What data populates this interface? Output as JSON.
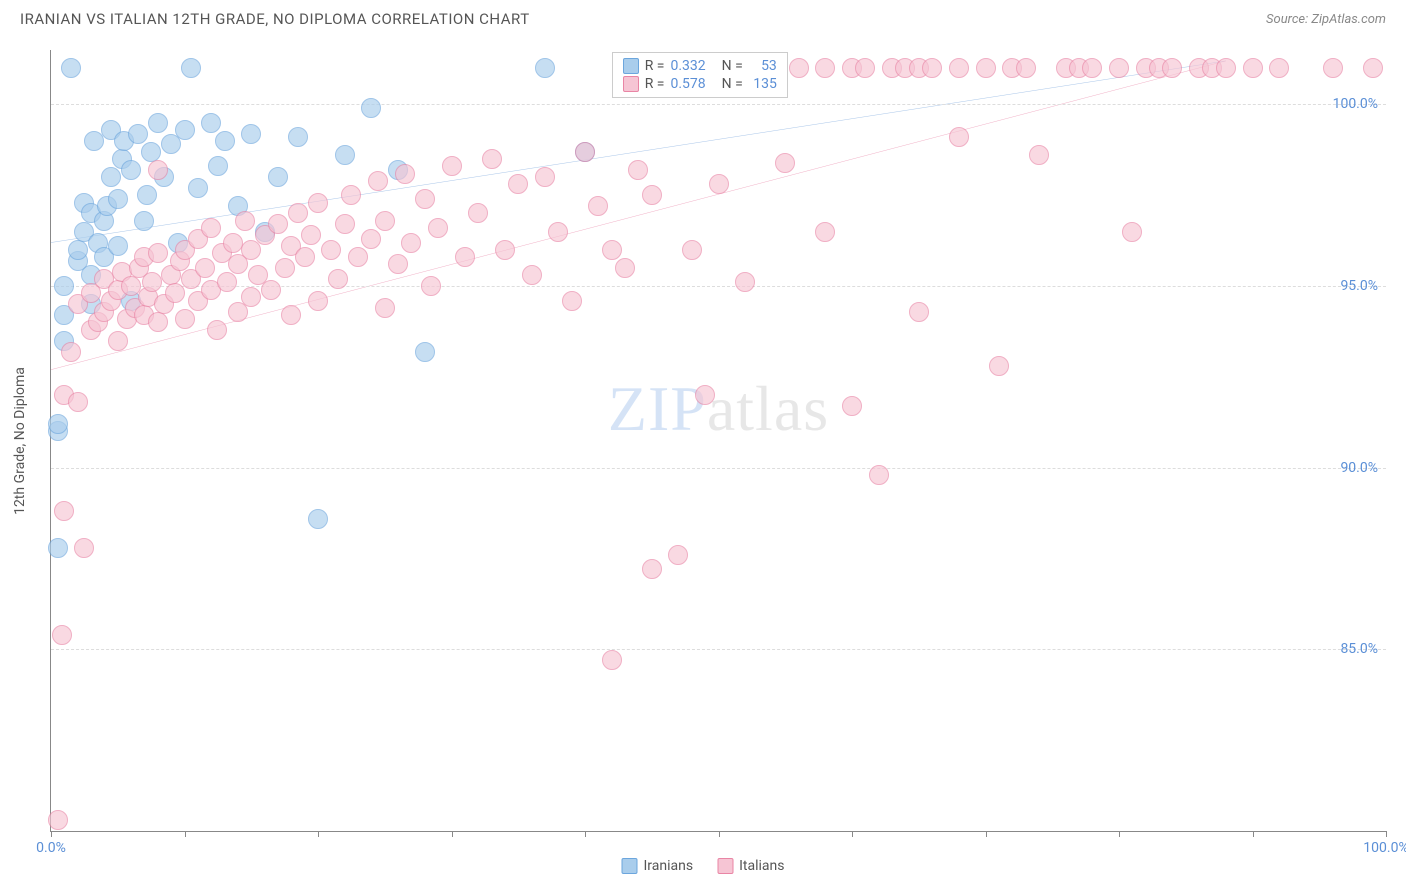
{
  "title": "IRANIAN VS ITALIAN 12TH GRADE, NO DIPLOMA CORRELATION CHART",
  "source": "Source: ZipAtlas.com",
  "y_axis_label": "12th Grade, No Diploma",
  "watermark": {
    "part1": "ZIP",
    "part2": "atlas"
  },
  "chart": {
    "type": "scatter",
    "xlim": [
      0,
      100
    ],
    "ylim": [
      80,
      101.5
    ],
    "x_ticks": [
      0,
      10,
      20,
      30,
      40,
      50,
      60,
      70,
      80,
      90,
      100
    ],
    "x_tick_labels_shown": {
      "0": "0.0%",
      "100": "100.0%"
    },
    "y_ticks": [
      85,
      90,
      95,
      100
    ],
    "y_tick_labels": [
      "85.0%",
      "90.0%",
      "95.0%",
      "100.0%"
    ],
    "grid_color": "#dddddd",
    "background_color": "#ffffff",
    "axis_color": "#888888",
    "tick_label_color": "#5b8fd6",
    "tick_label_fontsize": 14
  },
  "series": [
    {
      "name": "Iranians",
      "color_fill": "#a9cdec",
      "color_stroke": "#6ca6dd",
      "opacity": 0.65,
      "marker_radius": 10,
      "trend": {
        "x1": 0,
        "y1": 96.2,
        "x2": 88,
        "y2": 101.2,
        "color": "#4a86d0",
        "width": 2
      },
      "legend_stats": {
        "R": "0.332",
        "N": "53"
      },
      "points": [
        [
          0.5,
          87.8
        ],
        [
          0.5,
          91.0
        ],
        [
          0.5,
          91.2
        ],
        [
          1,
          93.5
        ],
        [
          1,
          94.2
        ],
        [
          1,
          95.0
        ],
        [
          1.5,
          101.0
        ],
        [
          2,
          95.7
        ],
        [
          2,
          96.0
        ],
        [
          2.5,
          96.5
        ],
        [
          2.5,
          97.3
        ],
        [
          3,
          94.5
        ],
        [
          3,
          95.3
        ],
        [
          3,
          97.0
        ],
        [
          3.2,
          99.0
        ],
        [
          3.5,
          96.2
        ],
        [
          4,
          95.8
        ],
        [
          4,
          96.8
        ],
        [
          4.2,
          97.2
        ],
        [
          4.5,
          98.0
        ],
        [
          4.5,
          99.3
        ],
        [
          5,
          96.1
        ],
        [
          5,
          97.4
        ],
        [
          5.3,
          98.5
        ],
        [
          5.5,
          99.0
        ],
        [
          6,
          94.6
        ],
        [
          6,
          98.2
        ],
        [
          6.5,
          99.2
        ],
        [
          7,
          96.8
        ],
        [
          7.2,
          97.5
        ],
        [
          7.5,
          98.7
        ],
        [
          8,
          99.5
        ],
        [
          8.5,
          98.0
        ],
        [
          9,
          98.9
        ],
        [
          9.5,
          96.2
        ],
        [
          10,
          99.3
        ],
        [
          10.5,
          101.0
        ],
        [
          11,
          97.7
        ],
        [
          12,
          99.5
        ],
        [
          12.5,
          98.3
        ],
        [
          13,
          99.0
        ],
        [
          14,
          97.2
        ],
        [
          15,
          99.2
        ],
        [
          16,
          96.5
        ],
        [
          17,
          98.0
        ],
        [
          18.5,
          99.1
        ],
        [
          20,
          88.6
        ],
        [
          22,
          98.6
        ],
        [
          24,
          99.9
        ],
        [
          26,
          98.2
        ],
        [
          28,
          93.2
        ],
        [
          37,
          101.0
        ],
        [
          40,
          98.7
        ]
      ]
    },
    {
      "name": "Italians",
      "color_fill": "#f6c5d4",
      "color_stroke": "#e985a5",
      "opacity": 0.65,
      "marker_radius": 10,
      "trend": {
        "x1": 0,
        "y1": 92.7,
        "x2": 88,
        "y2": 101.2,
        "color": "#e15a8a",
        "width": 2
      },
      "legend_stats": {
        "R": "0.578",
        "N": "135"
      },
      "points": [
        [
          0.5,
          80.3
        ],
        [
          0.8,
          85.4
        ],
        [
          1,
          88.8
        ],
        [
          1,
          92.0
        ],
        [
          1.5,
          93.2
        ],
        [
          2,
          91.8
        ],
        [
          2,
          94.5
        ],
        [
          2.5,
          87.8
        ],
        [
          3,
          93.8
        ],
        [
          3,
          94.8
        ],
        [
          3.5,
          94.0
        ],
        [
          4,
          94.3
        ],
        [
          4,
          95.2
        ],
        [
          4.5,
          94.6
        ],
        [
          5,
          93.5
        ],
        [
          5,
          94.9
        ],
        [
          5.3,
          95.4
        ],
        [
          5.7,
          94.1
        ],
        [
          6,
          95.0
        ],
        [
          6.3,
          94.4
        ],
        [
          6.6,
          95.5
        ],
        [
          7,
          94.2
        ],
        [
          7,
          95.8
        ],
        [
          7.3,
          94.7
        ],
        [
          7.6,
          95.1
        ],
        [
          8,
          94.0
        ],
        [
          8,
          95.9
        ],
        [
          8,
          98.2
        ],
        [
          8.5,
          94.5
        ],
        [
          9,
          95.3
        ],
        [
          9.3,
          94.8
        ],
        [
          9.7,
          95.7
        ],
        [
          10,
          94.1
        ],
        [
          10,
          96.0
        ],
        [
          10.5,
          95.2
        ],
        [
          11,
          94.6
        ],
        [
          11,
          96.3
        ],
        [
          11.5,
          95.5
        ],
        [
          12,
          94.9
        ],
        [
          12,
          96.6
        ],
        [
          12.4,
          93.8
        ],
        [
          12.8,
          95.9
        ],
        [
          13.2,
          95.1
        ],
        [
          13.6,
          96.2
        ],
        [
          14,
          94.3
        ],
        [
          14,
          95.6
        ],
        [
          14.5,
          96.8
        ],
        [
          15,
          94.7
        ],
        [
          15,
          96.0
        ],
        [
          15.5,
          95.3
        ],
        [
          16,
          96.4
        ],
        [
          16.5,
          94.9
        ],
        [
          17,
          96.7
        ],
        [
          17.5,
          95.5
        ],
        [
          18,
          94.2
        ],
        [
          18,
          96.1
        ],
        [
          18.5,
          97.0
        ],
        [
          19,
          95.8
        ],
        [
          19.5,
          96.4
        ],
        [
          20,
          94.6
        ],
        [
          20,
          97.3
        ],
        [
          21,
          96.0
        ],
        [
          21.5,
          95.2
        ],
        [
          22,
          96.7
        ],
        [
          22.5,
          97.5
        ],
        [
          23,
          95.8
        ],
        [
          24,
          96.3
        ],
        [
          24.5,
          97.9
        ],
        [
          25,
          94.4
        ],
        [
          25,
          96.8
        ],
        [
          26,
          95.6
        ],
        [
          26.5,
          98.1
        ],
        [
          27,
          96.2
        ],
        [
          28,
          97.4
        ],
        [
          28.5,
          95.0
        ],
        [
          29,
          96.6
        ],
        [
          30,
          98.3
        ],
        [
          31,
          95.8
        ],
        [
          32,
          97.0
        ],
        [
          33,
          98.5
        ],
        [
          34,
          96.0
        ],
        [
          35,
          97.8
        ],
        [
          36,
          95.3
        ],
        [
          37,
          98.0
        ],
        [
          38,
          96.5
        ],
        [
          39,
          94.6
        ],
        [
          40,
          98.7
        ],
        [
          41,
          97.2
        ],
        [
          42,
          84.7
        ],
        [
          42,
          96.0
        ],
        [
          43,
          95.5
        ],
        [
          44,
          98.2
        ],
        [
          45,
          87.2
        ],
        [
          45,
          97.5
        ],
        [
          47,
          87.6
        ],
        [
          48,
          96.0
        ],
        [
          49,
          92.0
        ],
        [
          50,
          97.8
        ],
        [
          52,
          95.1
        ],
        [
          54,
          101.0
        ],
        [
          55,
          98.4
        ],
        [
          56,
          101.0
        ],
        [
          58,
          96.5
        ],
        [
          58,
          101.0
        ],
        [
          60,
          91.7
        ],
        [
          60,
          101.0
        ],
        [
          61,
          101.0
        ],
        [
          62,
          89.8
        ],
        [
          63,
          101.0
        ],
        [
          64,
          101.0
        ],
        [
          65,
          94.3
        ],
        [
          65,
          101.0
        ],
        [
          66,
          101.0
        ],
        [
          68,
          99.1
        ],
        [
          68,
          101.0
        ],
        [
          70,
          101.0
        ],
        [
          71,
          92.8
        ],
        [
          72,
          101.0
        ],
        [
          73,
          101.0
        ],
        [
          74,
          98.6
        ],
        [
          76,
          101.0
        ],
        [
          77,
          101.0
        ],
        [
          78,
          101.0
        ],
        [
          80,
          101.0
        ],
        [
          81,
          96.5
        ],
        [
          82,
          101.0
        ],
        [
          83,
          101.0
        ],
        [
          84,
          101.0
        ],
        [
          86,
          101.0
        ],
        [
          87,
          101.0
        ],
        [
          88,
          101.0
        ],
        [
          90,
          101.0
        ],
        [
          92,
          101.0
        ],
        [
          96,
          101.0
        ],
        [
          99,
          101.0
        ]
      ]
    }
  ],
  "bottom_legend": [
    {
      "label": "Iranians",
      "fill": "#a9cdec",
      "stroke": "#6ca6dd"
    },
    {
      "label": "Italians",
      "fill": "#f6c5d4",
      "stroke": "#e985a5"
    }
  ]
}
